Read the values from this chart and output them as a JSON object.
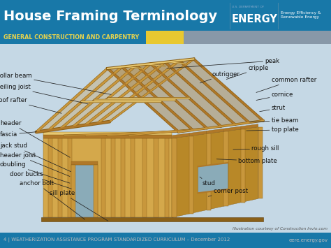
{
  "title": "House Framing Terminology",
  "header_bg": "#1878a8",
  "header_text_color": "#ffffff",
  "subheader_text": "GENERAL CONSTRUCTION AND CARPENTRY",
  "subheader_bg": "#1878a8",
  "subheader_text_color": "#e8d44d",
  "subheader_stripe_yellow": "#e8c830",
  "subheader_stripe_gray": "#8898a8",
  "footer_bg": "#2a2a2a",
  "footer_text": "4 | WEATHERIZATION ASSISTANCE PROGRAM STANDARDIZED CURRICULUM – December 2012",
  "footer_right": "eere.energy.gov",
  "footer_text_color": "#bbbbbb",
  "body_bg": "#c8dce8",
  "energy_text": "ENERGY",
  "energy_subtext": "Energy Efficiency &\nRenewable Energy",
  "dept_text": "U.S. DEPARTMENT OF",
  "illustration_credit": "Illustration courtesy of Construction Invio.com",
  "label_fontsize": 6.2,
  "title_fontsize": 14,
  "footer_fontsize": 5.0
}
